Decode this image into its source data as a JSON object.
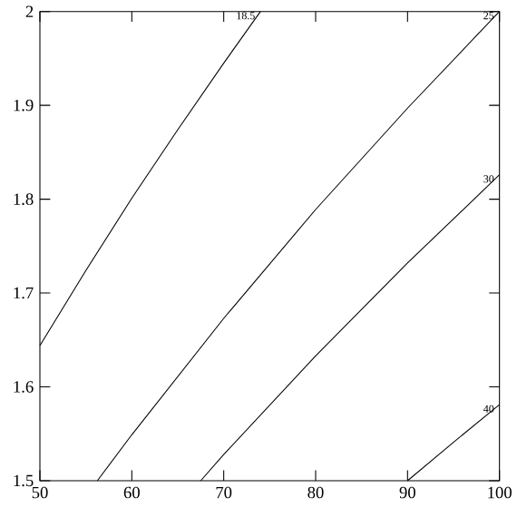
{
  "chart_data": {
    "type": "line",
    "series": [
      {
        "name": "18.5",
        "color": "#000000",
        "x": [
          50,
          55,
          60,
          65,
          70,
          74
        ],
        "values": [
          1.644,
          1.724,
          1.801,
          1.874,
          1.945,
          2.0
        ]
      },
      {
        "name": "25",
        "color": "#000000",
        "x": [
          56.25,
          60,
          70,
          80,
          90,
          100
        ],
        "values": [
          1.5,
          1.549,
          1.673,
          1.789,
          1.897,
          2.0
        ]
      },
      {
        "name": "30",
        "color": "#000000",
        "x": [
          67.5,
          70,
          80,
          90,
          100
        ],
        "values": [
          1.5,
          1.528,
          1.633,
          1.732,
          1.826
        ]
      },
      {
        "name": "40",
        "color": "#000000",
        "x": [
          90,
          95,
          100
        ],
        "values": [
          1.5,
          1.541,
          1.581
        ]
      }
    ],
    "xlim": [
      50,
      100
    ],
    "ylim": [
      1.5,
      2
    ],
    "xticks": [
      50,
      60,
      70,
      80,
      90,
      100
    ],
    "yticks": [
      1.5,
      1.6,
      1.7,
      1.8,
      1.9,
      2
    ],
    "grid": false,
    "marker": "none",
    "line_style": "solid"
  }
}
